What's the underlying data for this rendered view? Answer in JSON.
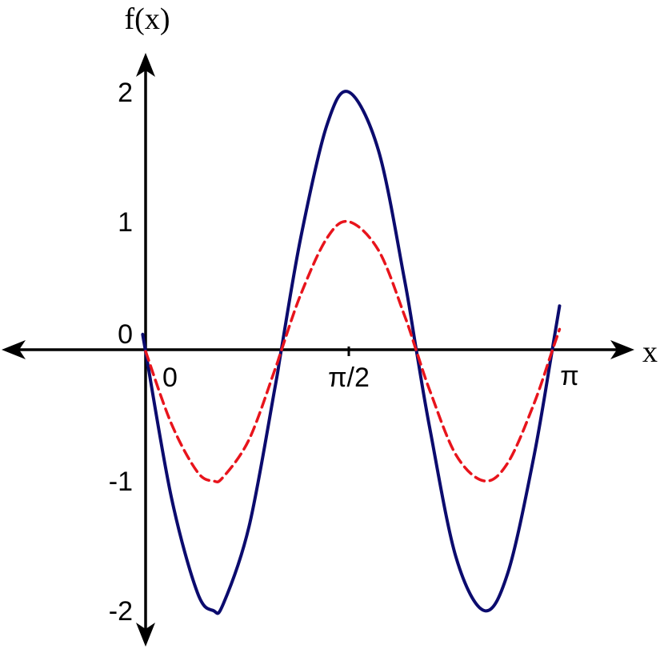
{
  "chart_data": {
    "type": "line",
    "title": "",
    "xlabel": "x",
    "ylabel": "f(x)",
    "xlim": [
      0,
      3.1416
    ],
    "ylim": [
      -2,
      2
    ],
    "grid": false,
    "x_ticks": [
      {
        "value": 0,
        "label": "0"
      },
      {
        "value": 1.5708,
        "label": "π/2"
      },
      {
        "value": 3.1416,
        "label": "π"
      }
    ],
    "y_ticks": [
      {
        "value": 2,
        "label": "2"
      },
      {
        "value": 1,
        "label": "1"
      },
      {
        "value": 0,
        "label": "0"
      },
      {
        "value": -1,
        "label": "-1"
      },
      {
        "value": -2,
        "label": "-2"
      }
    ],
    "series": [
      {
        "color": "#0b0b6e",
        "style": "solid",
        "x": [
          -0.02,
          0,
          0.2,
          0.4,
          0.5236,
          0.6,
          0.8,
          1.0,
          1.0472,
          1.2,
          1.4,
          1.5708,
          1.8,
          2.0,
          2.0944,
          2.2,
          2.4,
          2.618,
          2.8,
          3.0,
          3.1416,
          3.2
        ],
        "y": [
          0.12,
          0,
          -1.13,
          -1.86,
          -2.0,
          -1.95,
          -1.35,
          -0.28,
          0,
          0.88,
          1.74,
          2.0,
          1.55,
          0.56,
          0,
          -0.61,
          -1.59,
          -2.0,
          -1.71,
          -0.82,
          0,
          0.35
        ]
      },
      {
        "color": "#e8141c",
        "style": "dashed",
        "x": [
          0,
          0.2,
          0.4,
          0.5236,
          0.6,
          0.8,
          1.0,
          1.0472,
          1.2,
          1.4,
          1.5708,
          1.8,
          2.0,
          2.0944,
          2.2,
          2.4,
          2.618,
          2.8,
          3.0,
          3.1416,
          3.2
        ],
        "y": [
          0,
          -0.56,
          -0.93,
          -1.0,
          -0.97,
          -0.68,
          -0.14,
          0,
          0.44,
          0.87,
          1.0,
          0.78,
          0.28,
          0,
          -0.31,
          -0.8,
          -1.0,
          -0.86,
          -0.41,
          0,
          0.17
        ]
      }
    ]
  }
}
